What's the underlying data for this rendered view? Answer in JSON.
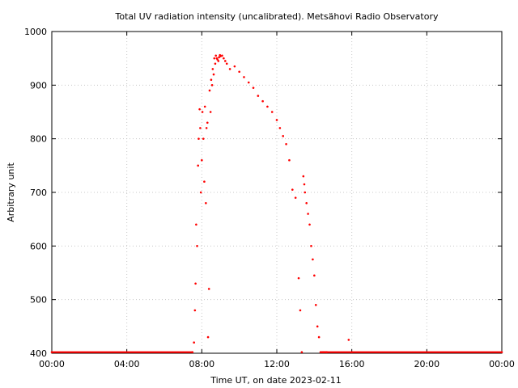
{
  "chart_data": {
    "type": "scatter",
    "title": "Total UV radiation intensity (uncalibrated). Metsähovi Radio Observatory",
    "xlabel": "Time UT, on date 2023-02-11",
    "ylabel": "Arbitrary unit",
    "xlim": [
      "00:00",
      "24:00"
    ],
    "ylim": [
      400,
      1000
    ],
    "x_ticks": [
      "00:00",
      "04:00",
      "08:00",
      "12:00",
      "16:00",
      "20:00",
      "00:00"
    ],
    "y_ticks": [
      400,
      500,
      600,
      700,
      800,
      900,
      1000
    ],
    "grid": true,
    "legend": "none",
    "marker_color": "#ff0000",
    "series": [
      {
        "x": [
          "00:00",
          "07:30",
          "07:35",
          "07:38",
          "07:40",
          "07:42",
          "07:45",
          "07:48",
          "07:50",
          "07:53",
          "07:55",
          "07:57",
          "08:00",
          "08:02",
          "08:05",
          "08:08",
          "08:10",
          "08:13",
          "08:15",
          "08:18",
          "08:20",
          "08:23",
          "08:25",
          "08:28",
          "08:30",
          "08:33",
          "08:35",
          "08:38",
          "08:40",
          "08:43",
          "08:45",
          "08:48",
          "08:50",
          "08:53",
          "08:55",
          "08:58",
          "09:00",
          "09:05",
          "09:10",
          "09:15",
          "09:20",
          "09:30",
          "09:45",
          "10:00",
          "10:15",
          "10:30",
          "10:45",
          "11:00",
          "11:15",
          "11:30",
          "11:45",
          "12:00",
          "12:10",
          "12:20",
          "12:30",
          "12:40",
          "12:50",
          "13:00",
          "13:10",
          "13:15",
          "13:20",
          "13:25",
          "13:28",
          "13:30",
          "13:35",
          "13:40",
          "13:45",
          "13:50",
          "13:55",
          "14:00",
          "14:05",
          "14:10",
          "14:15",
          "14:20",
          "14:25",
          "14:30",
          "14:35",
          "14:40",
          "15:50",
          "16:00",
          "24:00"
        ],
        "y": [
          402,
          402,
          420,
          480,
          530,
          640,
          600,
          750,
          800,
          855,
          820,
          700,
          760,
          850,
          800,
          720,
          860,
          680,
          820,
          830,
          430,
          520,
          890,
          850,
          910,
          900,
          930,
          920,
          950,
          940,
          955,
          950,
          948,
          945,
          952,
          956,
          954,
          955,
          950,
          945,
          940,
          930,
          935,
          925,
          915,
          905,
          895,
          880,
          870,
          860,
          850,
          835,
          820,
          805,
          790,
          760,
          705,
          690,
          540,
          480,
          402,
          730,
          715,
          700,
          680,
          660,
          640,
          600,
          575,
          545,
          490,
          450,
          430,
          402,
          402,
          402,
          402,
          402,
          425,
          402,
          402
        ]
      }
    ]
  }
}
